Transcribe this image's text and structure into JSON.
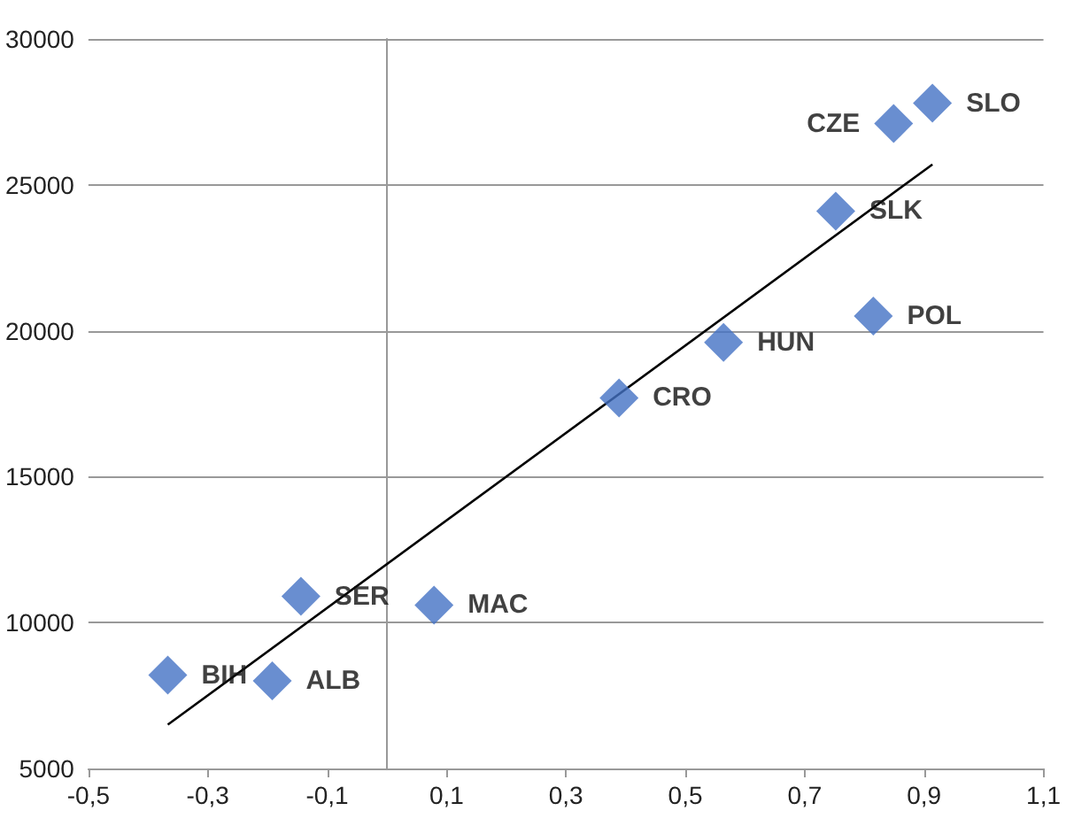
{
  "chart_data": {
    "type": "scatter",
    "xlim": [
      -0.5,
      1.1
    ],
    "xticks": [
      {
        "value": -0.5,
        "label": "-0,5"
      },
      {
        "value": -0.3,
        "label": "-0,3"
      },
      {
        "value": -0.1,
        "label": "-0,1"
      },
      {
        "value": 0.1,
        "label": "0,1"
      },
      {
        "value": 0.3,
        "label": "0,3"
      },
      {
        "value": 0.5,
        "label": "0,5"
      },
      {
        "value": 0.7,
        "label": "0,7"
      },
      {
        "value": 0.9,
        "label": "0,9"
      },
      {
        "value": 1.1,
        "label": "1,1"
      }
    ],
    "ylim": [
      5000,
      30000
    ],
    "yticks": [
      5000,
      10000,
      15000,
      20000,
      25000,
      30000
    ],
    "grid": "y",
    "marker": "diamond",
    "series": [
      {
        "color": "#4472c4",
        "x": [
          -0.367,
          -0.192,
          -0.144,
          0.079,
          0.389,
          0.564,
          0.752,
          0.815,
          0.849,
          0.914
        ],
        "values": [
          8200,
          8000,
          10900,
          10600,
          17700,
          19600,
          24100,
          20500,
          27100,
          27800
        ],
        "value_labels": [
          "BIH",
          "ALB",
          "SER",
          "MAC",
          "CRO",
          "HUN",
          "SLK",
          "POL",
          "CZE",
          "SLO"
        ]
      },
      {
        "type": "line",
        "color": "#000000",
        "x": [
          -0.367,
          0.914
        ],
        "values": [
          6500,
          25700
        ],
        "marker": "none",
        "line_style": "solid"
      }
    ]
  }
}
